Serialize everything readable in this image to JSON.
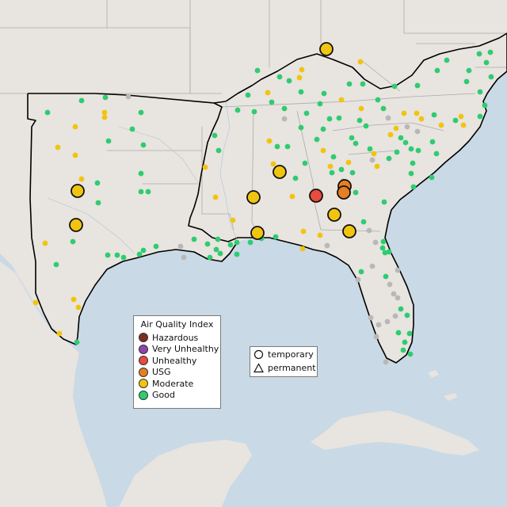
{
  "legend": {
    "title": "Air Quality Index",
    "categories": [
      {
        "label": "Hazardous",
        "color": "#7e2d23"
      },
      {
        "label": "Very Unhealthy",
        "color": "#8e44ad"
      },
      {
        "label": "Unhealthy",
        "color": "#e74c3c"
      },
      {
        "label": "USG",
        "color": "#e67e22"
      },
      {
        "label": "Moderate",
        "color": "#f1c40f"
      },
      {
        "label": "Good",
        "color": "#2ecc71"
      }
    ]
  },
  "site_type_legend": {
    "temporary": "temporary",
    "permanent": "permanent"
  },
  "colors": {
    "water": "#c9d9e6",
    "land": "#e8e4df",
    "no_data": "#b8b8b8"
  },
  "regions": [
    "Southeastern United States",
    "Gulf of Mexico",
    "Cuba"
  ]
}
